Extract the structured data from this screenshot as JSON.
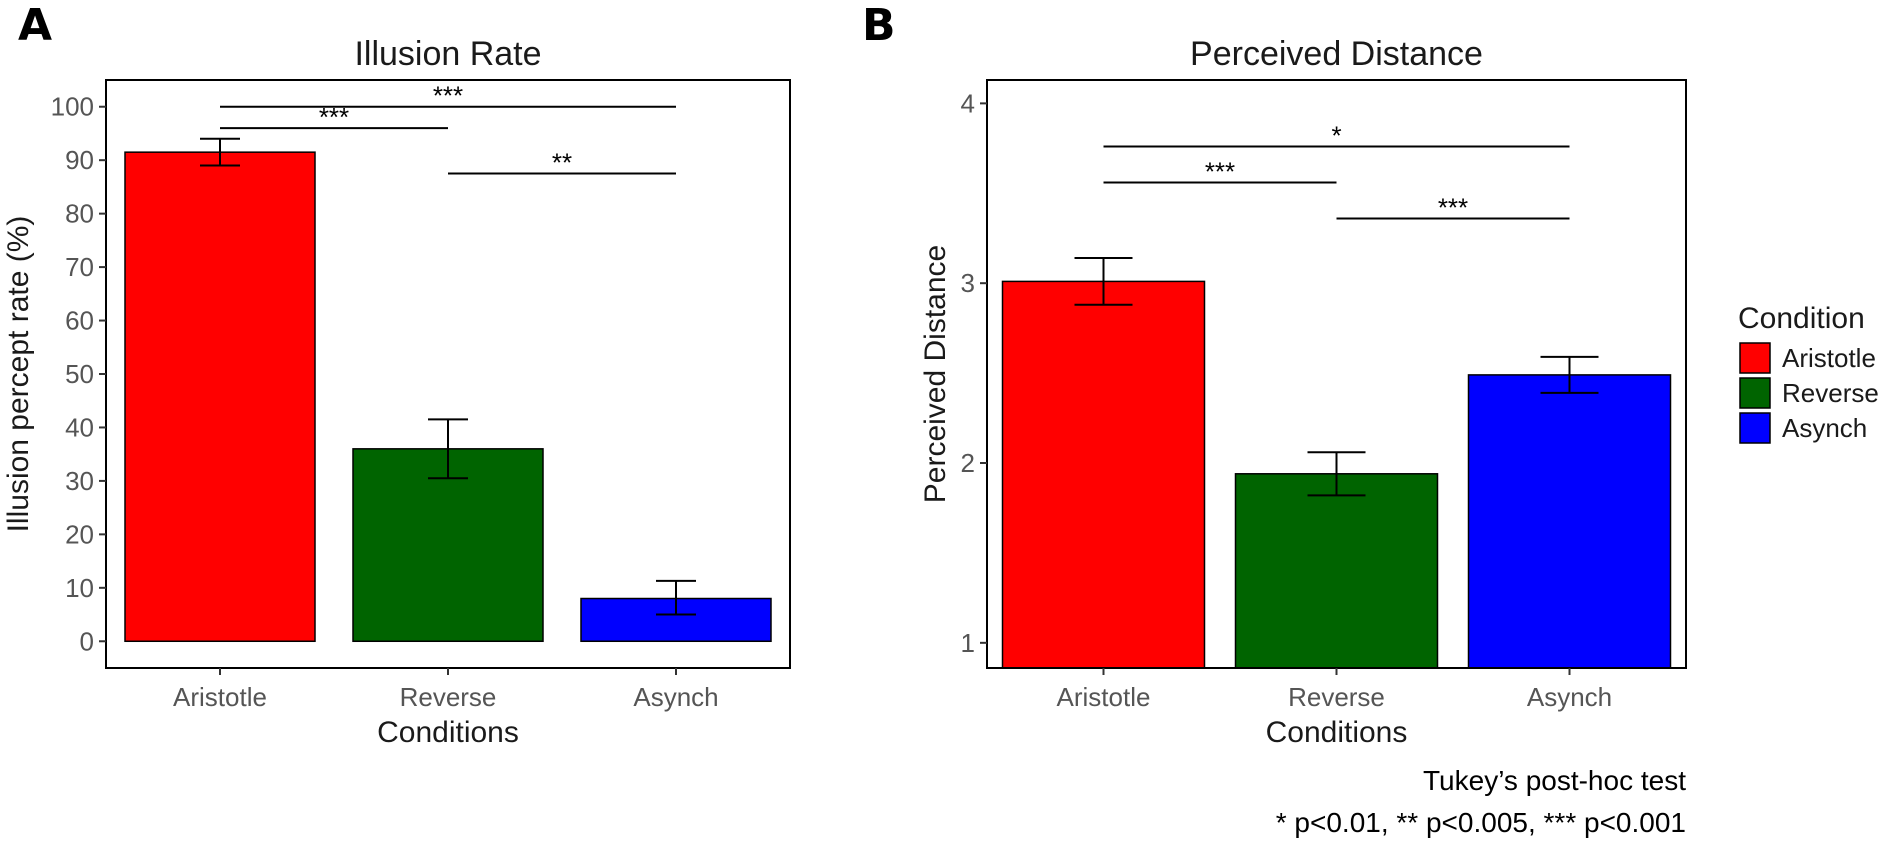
{
  "panel_labels": {
    "a": "A",
    "b": "B"
  },
  "legend": {
    "title": "Condition",
    "items": [
      {
        "label": "Aristotle",
        "color": "#ff0000"
      },
      {
        "label": "Reverse",
        "color": "#006400"
      },
      {
        "label": "Asynch",
        "color": "#0000ff"
      }
    ]
  },
  "footnote": {
    "line1": "Tukey’s post-hoc test",
    "line2": "* p<0.01, ** p<0.005, *** p<0.001"
  },
  "chart_data": [
    {
      "type": "bar",
      "title": "Illusion Rate",
      "xlabel": "Conditions",
      "ylabel": "Illusion percept rate (%)",
      "categories": [
        "Aristotle",
        "Reverse",
        "Asynch"
      ],
      "values": [
        91.5,
        36,
        8
      ],
      "error_low": [
        89,
        30.5,
        5
      ],
      "error_high": [
        94,
        41.5,
        11.3
      ],
      "colors": [
        "#ff0000",
        "#006400",
        "#0000ff"
      ],
      "ylim": [
        -5,
        105
      ],
      "yticks": [
        0,
        10,
        20,
        30,
        40,
        50,
        60,
        70,
        80,
        90,
        100
      ],
      "ytick_labels": [
        "0",
        "10",
        "20",
        "30",
        "40",
        "50",
        "60",
        "70",
        "80",
        "90",
        "100"
      ],
      "significance": [
        {
          "from": 0,
          "to": 2,
          "level": 100,
          "label": "***"
        },
        {
          "from": 0,
          "to": 1,
          "level": 96,
          "label": "***"
        },
        {
          "from": 1,
          "to": 2,
          "level": 87.5,
          "label": "**"
        }
      ]
    },
    {
      "type": "bar",
      "title": "Perceived Distance",
      "xlabel": "Conditions",
      "ylabel": "Perceived Distance",
      "categories": [
        "Aristotle",
        "Reverse",
        "Asynch"
      ],
      "values": [
        3.01,
        1.94,
        2.49
      ],
      "error_low": [
        2.88,
        1.82,
        2.39
      ],
      "error_high": [
        3.14,
        2.06,
        2.59
      ],
      "colors": [
        "#ff0000",
        "#006400",
        "#0000ff"
      ],
      "baseline": 0,
      "ylim": [
        0.86,
        4.13
      ],
      "yticks": [
        1,
        2,
        3,
        4
      ],
      "ytick_labels": [
        "1",
        "2",
        "3",
        "4"
      ],
      "significance": [
        {
          "from": 0,
          "to": 2,
          "level": 3.76,
          "label": "*"
        },
        {
          "from": 0,
          "to": 1,
          "level": 3.56,
          "label": "***"
        },
        {
          "from": 1,
          "to": 2,
          "level": 3.36,
          "label": "***"
        }
      ]
    }
  ]
}
